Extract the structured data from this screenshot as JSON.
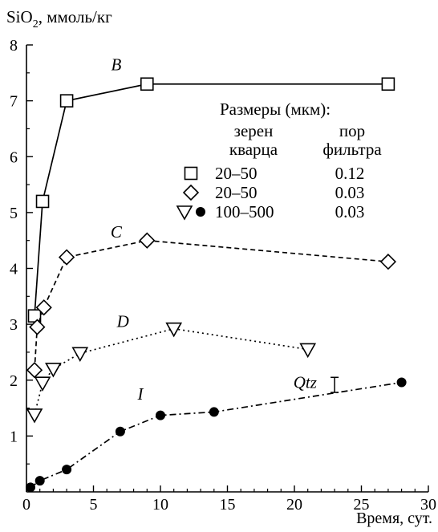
{
  "chart_data": {
    "type": "line",
    "ylabel": "SiO",
    "ylabel_sub": "2",
    "ylabel_rest": ", ммоль/кг",
    "xlabel": "Время, сут.",
    "xlim": [
      0,
      30
    ],
    "ylim": [
      0,
      8
    ],
    "xticks": [
      0,
      5,
      10,
      15,
      20,
      25,
      30
    ],
    "yticks": [
      1,
      2,
      3,
      4,
      5,
      6,
      7,
      8
    ],
    "grid": false,
    "legend": {
      "title": "Размеры (мкм):",
      "col1_header": [
        "зерен",
        "кварца"
      ],
      "col2_header": [
        "пор",
        "фильтра"
      ],
      "rows": [
        {
          "markers": [
            "square"
          ],
          "quartz": "20–50",
          "filter": "0.12"
        },
        {
          "markers": [
            "diamond"
          ],
          "quartz": "20–50",
          "filter": "0.03"
        },
        {
          "markers": [
            "triangle",
            "circle"
          ],
          "quartz": "100–500",
          "filter": "0.03"
        }
      ]
    },
    "series": [
      {
        "name": "B",
        "marker": "square",
        "dash": "",
        "label_at": [
          6.7,
          7.55
        ],
        "x": [
          0.6,
          1.2,
          3.0,
          9.0,
          27.0
        ],
        "y": [
          3.15,
          5.2,
          7.0,
          7.3,
          7.3
        ]
      },
      {
        "name": "C",
        "marker": "diamond",
        "dash": "6,4",
        "label_at": [
          6.7,
          4.55
        ],
        "x": [
          0.6,
          0.8,
          1.3,
          3.0,
          9.0,
          27.0
        ],
        "y": [
          2.18,
          2.95,
          3.3,
          4.2,
          4.5,
          4.12
        ]
      },
      {
        "name": "D",
        "marker": "triangle",
        "dash": "2,4",
        "label_at": [
          7.2,
          2.95
        ],
        "x": [
          0.6,
          1.2,
          2.0,
          4.0,
          11.0,
          21.0
        ],
        "y": [
          1.38,
          1.95,
          2.2,
          2.48,
          2.92,
          2.55
        ]
      },
      {
        "name": "I",
        "marker": "circle",
        "dash": "8,4,2,4",
        "label_at": [
          8.5,
          1.65
        ],
        "x": [
          0.3,
          1.0,
          3.0,
          7.0,
          10.0,
          14.0,
          28.0
        ],
        "y": [
          0.08,
          0.2,
          0.4,
          1.08,
          1.37,
          1.43,
          1.96
        ]
      }
    ],
    "annotation": {
      "text": "Qtz",
      "label_at": [
        20.8,
        1.86
      ],
      "bar_x": 23.0,
      "bar_y": [
        1.78,
        2.05
      ]
    }
  }
}
